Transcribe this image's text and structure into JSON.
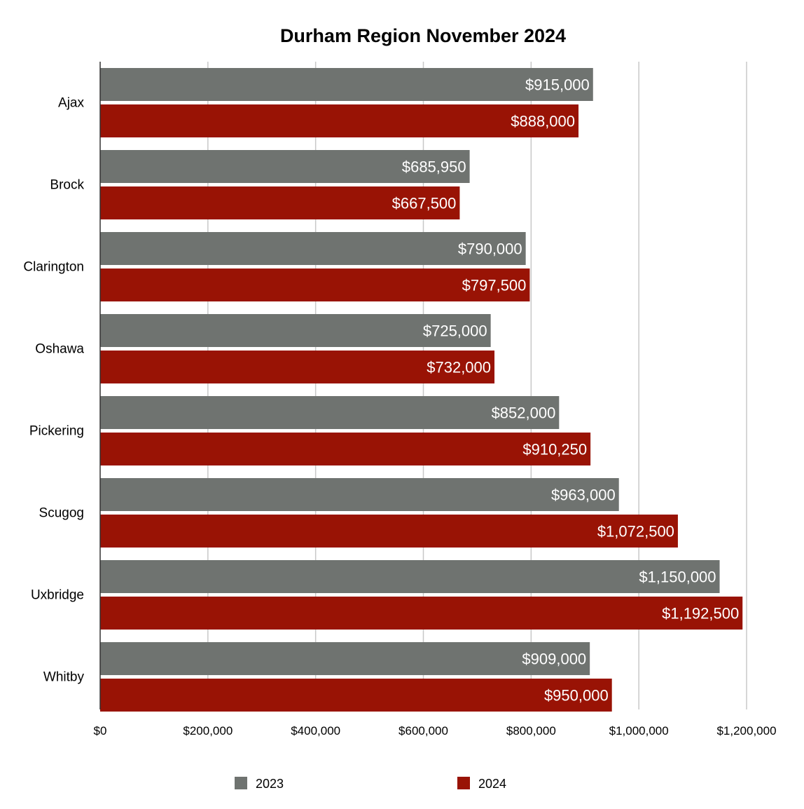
{
  "chart_data": {
    "type": "bar",
    "orientation": "horizontal",
    "title": "Durham Region November 2024",
    "categories": [
      "Ajax",
      "Brock",
      "Clarington",
      "Oshawa",
      "Pickering",
      "Scugog",
      "Uxbridge",
      "Whitby"
    ],
    "series": [
      {
        "name": "2023",
        "color": "#6f7370",
        "values": [
          915000,
          685950,
          790000,
          725000,
          852000,
          963000,
          1150000,
          909000
        ],
        "labels": [
          "$915,000",
          "$685,950",
          "$790,000",
          "$725,000",
          "$852,000",
          "$963,000",
          "$1,150,000",
          "$909,000"
        ]
      },
      {
        "name": "2024",
        "color": "#991305",
        "values": [
          888000,
          667500,
          797500,
          732000,
          910250,
          1072500,
          1192500,
          950000
        ],
        "labels": [
          "$888,000",
          "$667,500",
          "$797,500",
          "$732,000",
          "$910,250",
          "$1,072,500",
          "$1,192,500",
          "$950,000"
        ]
      }
    ],
    "xlim": [
      0,
      1200000
    ],
    "x_ticks": [
      0,
      200000,
      400000,
      600000,
      800000,
      1000000,
      1200000
    ],
    "x_tick_labels": [
      "$0",
      "$200,000",
      "$400,000",
      "$600,000",
      "$800,000",
      "$1,000,000",
      "$1,200,000"
    ],
    "grid": true,
    "legend_position": "bottom"
  }
}
